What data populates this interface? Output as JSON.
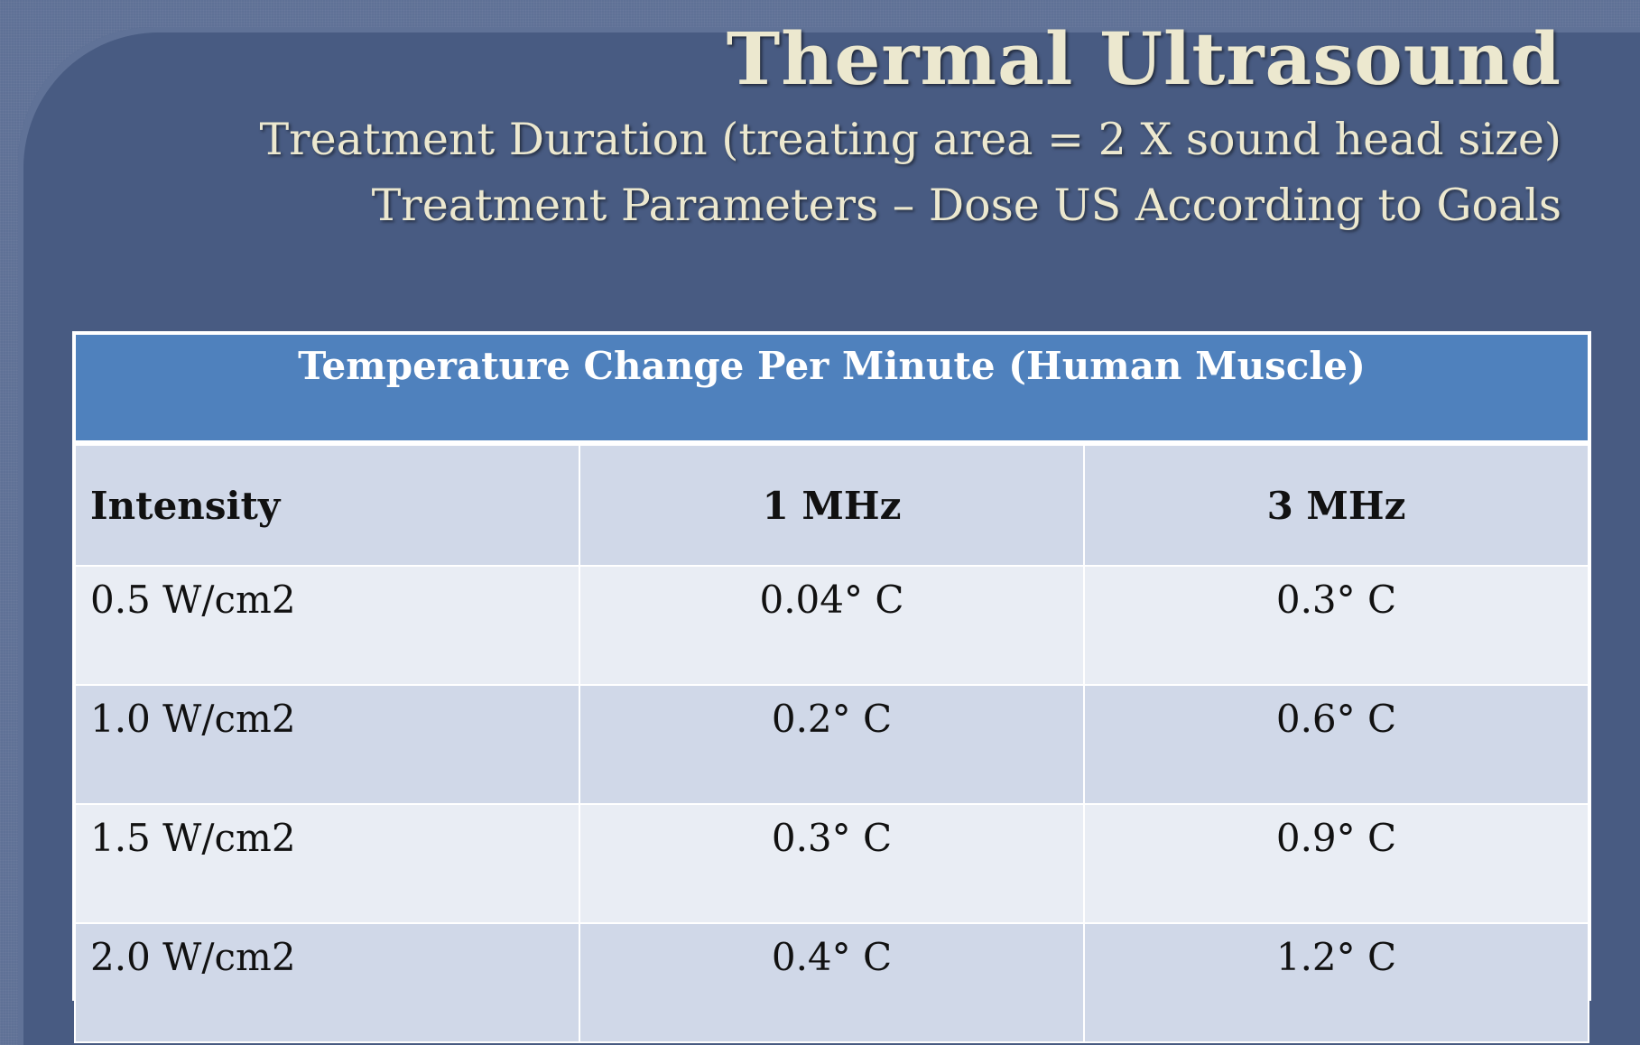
{
  "slide": {
    "title": "Thermal Ultrasound",
    "subtitles": [
      "Treatment Duration (treating area = 2 X sound head size)",
      "Treatment Parameters – Dose US According to Goals"
    ]
  },
  "table": {
    "caption": "Temperature Change Per Minute (Human Muscle)",
    "headers": [
      "Intensity",
      "1 MHz",
      "3 MHz"
    ],
    "rows": [
      [
        "0.5 W/cm2",
        "0.04° C",
        "0.3° C"
      ],
      [
        "1.0 W/cm2",
        "0.2° C",
        "0.6° C"
      ],
      [
        "1.5 W/cm2",
        "0.3° C",
        "0.9° C"
      ],
      [
        "2.0 W/cm2",
        "0.4° C",
        "1.2° C"
      ]
    ]
  },
  "colors": {
    "background": "#485b82",
    "title_text": "#ece8cf",
    "table_caption_bg": "#4f81bd",
    "table_row_dark": "#d0d8e8",
    "table_row_light": "#e9edf4"
  }
}
